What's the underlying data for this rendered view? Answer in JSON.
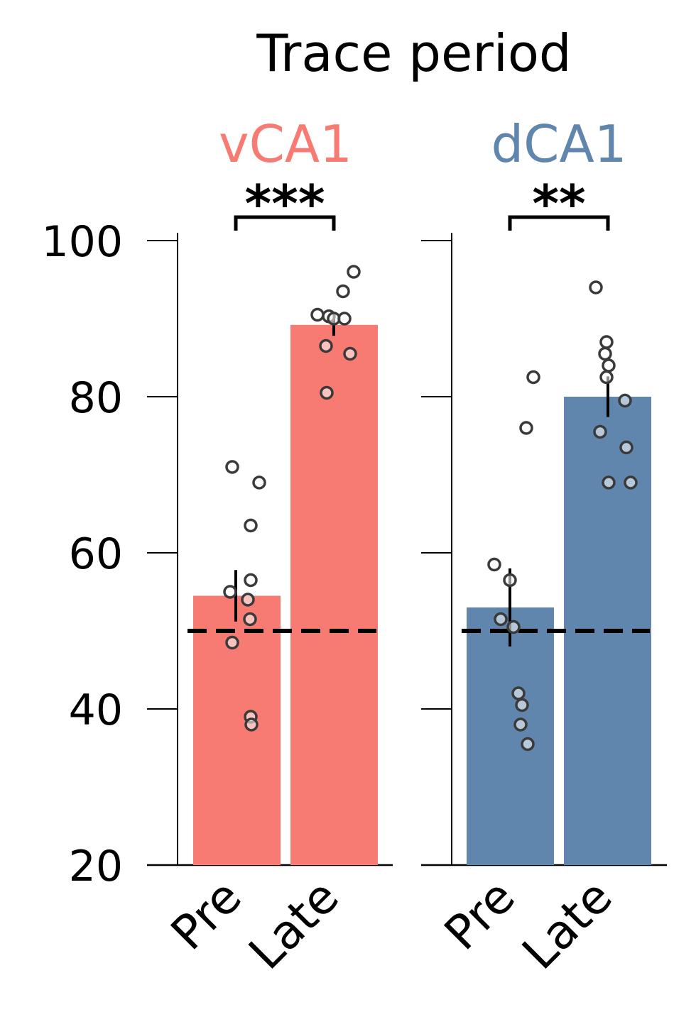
{
  "title": "Trace period",
  "chart_data": [
    {
      "type": "bar",
      "panel_title": "vCA1",
      "color": "#f77b72",
      "categories": [
        "Pre",
        "Late"
      ],
      "values": [
        54.5,
        89.2
      ],
      "errors": [
        3.3,
        1.4
      ],
      "points": [
        [
          71.0,
          69.0,
          63.5,
          56.5,
          55.0,
          54.0,
          51.5,
          48.5,
          39.0,
          38.0
        ],
        [
          96.0,
          93.5,
          90.5,
          90.3,
          90.0,
          90.0,
          86.5,
          85.5,
          80.5
        ]
      ],
      "significance": "***",
      "chance_level": 50,
      "ylim": [
        20,
        100
      ],
      "yticks": [
        20,
        40,
        60,
        80,
        100
      ]
    },
    {
      "type": "bar",
      "panel_title": "dCA1",
      "color": "#6186ad",
      "categories": [
        "Pre",
        "Late"
      ],
      "values": [
        53.0,
        80.0
      ],
      "errors": [
        5.0,
        2.6
      ],
      "points": [
        [
          82.5,
          76.0,
          58.5,
          56.5,
          51.5,
          50.5,
          42.0,
          40.5,
          38.0,
          35.5
        ],
        [
          94.0,
          87.0,
          85.5,
          84.0,
          82.5,
          79.5,
          75.5,
          73.5,
          69.0,
          69.0
        ]
      ],
      "significance": "**",
      "chance_level": 50,
      "ylim": [
        20,
        100
      ],
      "yticks": [
        20,
        40,
        60,
        80,
        100
      ]
    }
  ]
}
